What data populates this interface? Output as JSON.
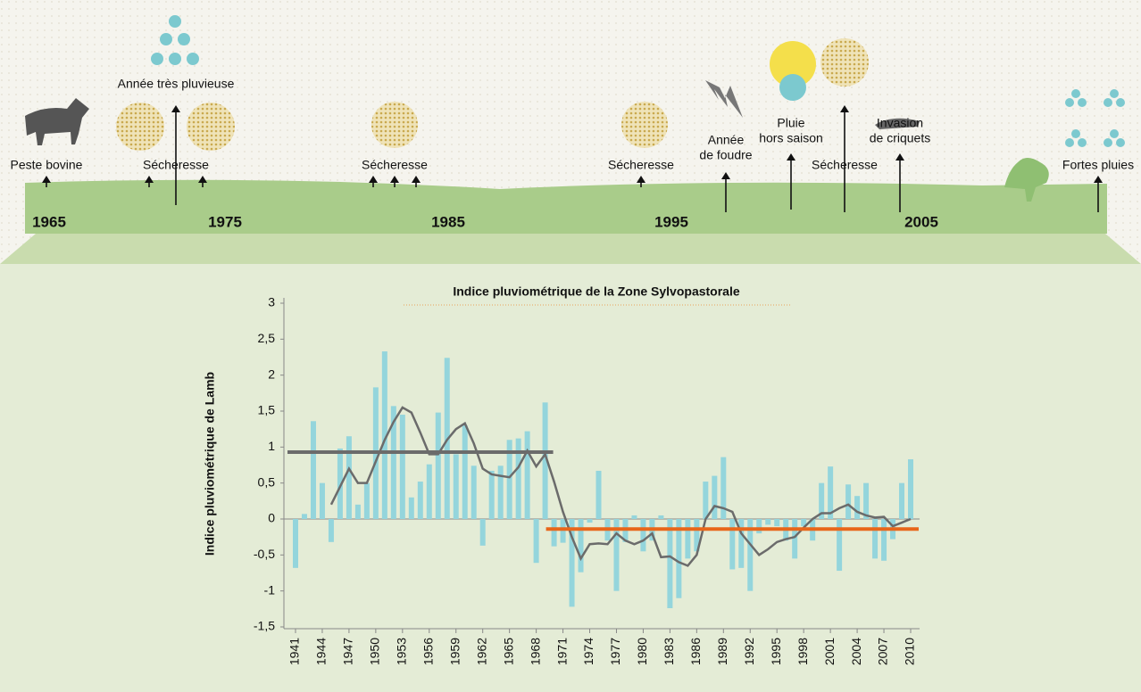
{
  "timeline": {
    "years": [
      "1965",
      "1975",
      "1985",
      "1995",
      "2005"
    ],
    "events": [
      {
        "label": [
          "Peste bovine"
        ]
      },
      {
        "label": [
          "Année très pluvieuse"
        ]
      },
      {
        "label": [
          "Sécheresse"
        ]
      },
      {
        "label": [
          "Sécheresse"
        ]
      },
      {
        "label": [
          "Sécheresse"
        ]
      },
      {
        "label": [
          "Année",
          "de foudre"
        ]
      },
      {
        "label": [
          "Pluie",
          "hors saison"
        ]
      },
      {
        "label": [
          "Sécheresse"
        ]
      },
      {
        "label": [
          "Invasion",
          "de criquets"
        ]
      },
      {
        "label": [
          "Fortes pluies"
        ]
      }
    ]
  },
  "chart_data": {
    "type": "bar",
    "title": "Indice pluviométrique de la Zone Sylvopastorale",
    "y_label": "Indice pluviométrique de Lamb",
    "categories": [
      "1941",
      null,
      null,
      "1944",
      null,
      null,
      "1947",
      null,
      null,
      "1950",
      null,
      null,
      "1953",
      null,
      null,
      "1956",
      null,
      null,
      "1959",
      null,
      null,
      "1962",
      null,
      null,
      "1965",
      null,
      null,
      "1968",
      null,
      null,
      "1971",
      null,
      null,
      "1974",
      null,
      null,
      "1977",
      null,
      null,
      "1980",
      null,
      null,
      "1983",
      null,
      null,
      "1986",
      null,
      null,
      "1989",
      null,
      null,
      "1992",
      null,
      null,
      "1995",
      null,
      null,
      "1998",
      null,
      null,
      "2001",
      null,
      null,
      "2004",
      null,
      null,
      "2007",
      null,
      null,
      "2010"
    ],
    "series": [
      {
        "type": "bar",
        "color": "#94d5dc",
        "values": [
          -0.68,
          0.07,
          1.36,
          0.5,
          -0.32,
          0.98,
          1.15,
          0.2,
          0.5,
          1.83,
          2.33,
          1.57,
          1.45,
          0.3,
          0.52,
          0.76,
          1.48,
          2.24,
          0.9,
          1.3,
          0.74,
          -0.37,
          0.67,
          0.74,
          1.1,
          1.12,
          1.22,
          -0.61,
          1.62,
          -0.38,
          -0.33,
          -1.22,
          -0.74,
          -0.05,
          0.67,
          -0.3,
          -1.0,
          -0.32,
          0.05,
          -0.45,
          -0.3,
          0.05,
          -1.24,
          -1.1,
          -0.55,
          -0.45,
          0.52,
          0.6,
          0.86,
          -0.7,
          -0.68,
          -1.0,
          -0.2,
          -0.08,
          -0.1,
          -0.3,
          -0.55,
          -0.1,
          -0.3,
          0.5,
          0.73,
          -0.72,
          0.48,
          0.32,
          0.5,
          -0.55,
          -0.58,
          -0.28,
          0.5,
          0.83
        ]
      },
      {
        "type": "line",
        "color": "#6b6b6b",
        "values": [
          null,
          null,
          null,
          null,
          0.2,
          0.45,
          0.7,
          0.5,
          0.5,
          0.8,
          1.1,
          1.35,
          1.55,
          1.48,
          1.2,
          0.9,
          0.9,
          1.1,
          1.25,
          1.33,
          1.05,
          0.7,
          0.62,
          0.6,
          0.58,
          0.72,
          0.95,
          0.73,
          0.9,
          0.52,
          0.1,
          -0.25,
          -0.55,
          -0.35,
          -0.34,
          -0.35,
          -0.2,
          -0.3,
          -0.35,
          -0.3,
          -0.2,
          -0.53,
          -0.52,
          -0.6,
          -0.65,
          -0.5,
          0.0,
          0.18,
          0.15,
          0.1,
          -0.2,
          -0.35,
          -0.5,
          -0.42,
          -0.32,
          -0.28,
          -0.25,
          -0.12,
          0.0,
          0.08,
          0.08,
          0.15,
          0.2,
          0.1,
          0.05,
          0.02,
          0.03,
          -0.1,
          -0.05,
          0.0
        ]
      },
      {
        "type": "mean",
        "color": "#6b6b6b",
        "values": [
          0.93,
          0.93,
          0.93,
          0.93,
          0.93,
          0.93,
          0.93,
          0.93,
          0.93,
          0.93,
          0.93,
          0.93,
          0.93,
          0.93,
          0.93,
          0.93,
          0.93,
          0.93,
          0.93,
          0.93,
          0.93,
          0.93,
          0.93,
          0.93,
          0.93,
          0.93,
          0.93,
          0.93,
          0.93,
          null,
          null,
          null,
          null,
          null,
          null,
          null,
          null,
          null,
          null,
          null,
          null,
          null,
          null,
          null,
          null,
          null,
          null,
          null,
          null,
          null,
          null,
          null,
          null,
          null,
          null,
          null,
          null,
          null,
          null,
          null,
          null,
          null,
          null,
          null,
          null,
          null,
          null,
          null,
          null,
          null
        ]
      },
      {
        "type": "mean",
        "color": "#e8661a",
        "values": [
          null,
          null,
          null,
          null,
          null,
          null,
          null,
          null,
          null,
          null,
          null,
          null,
          null,
          null,
          null,
          null,
          null,
          null,
          null,
          null,
          null,
          null,
          null,
          null,
          null,
          null,
          null,
          null,
          null,
          -0.14,
          -0.14,
          -0.14,
          -0.14,
          -0.14,
          -0.14,
          -0.14,
          -0.14,
          -0.14,
          -0.14,
          -0.14,
          -0.14,
          -0.14,
          -0.14,
          -0.14,
          -0.14,
          -0.14,
          -0.14,
          -0.14,
          -0.14,
          -0.14,
          -0.14,
          -0.14,
          -0.14,
          -0.14,
          -0.14,
          -0.14,
          -0.14,
          -0.14,
          -0.14,
          -0.14,
          -0.14,
          -0.14,
          -0.14,
          -0.14,
          -0.14,
          -0.14,
          -0.14,
          -0.14,
          -0.14,
          -0.14
        ]
      }
    ],
    "ylim": [
      -1.5,
      3
    ],
    "yticks": [
      3,
      {
        "value": 2.5,
        "label": "2,5"
      },
      2,
      {
        "value": 1.5,
        "label": "1,5"
      },
      1,
      {
        "value": 0.5,
        "label": "0,5"
      },
      0,
      {
        "value": -0.5,
        "label": "-0,5"
      },
      -1,
      {
        "value": -1.5,
        "label": "-1,5"
      }
    ]
  }
}
